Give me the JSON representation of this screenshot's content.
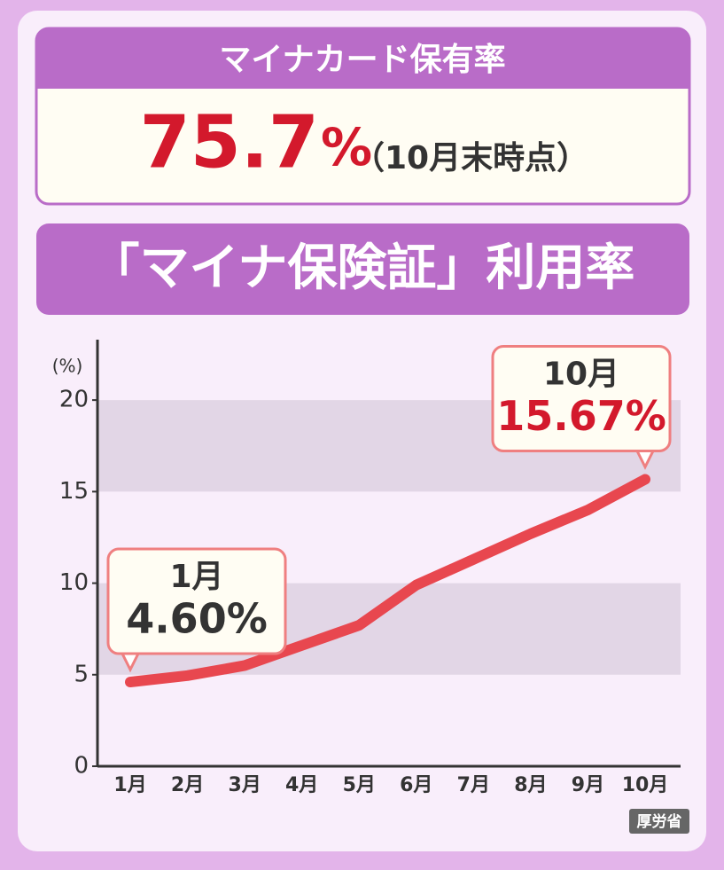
{
  "header": {
    "title": "マイナカード保有率",
    "value": "75.7",
    "unit": "%",
    "note": "（10月末時点）"
  },
  "chart_data": {
    "type": "line",
    "title": "「マイナ保険証」利用率",
    "y_label": "(%)",
    "categories": [
      "1月",
      "2月",
      "3月",
      "4月",
      "5月",
      "6月",
      "7月",
      "8月",
      "9月",
      "10月"
    ],
    "series": [
      {
        "name": "利用率",
        "color": "#e8474f",
        "values": [
          4.6,
          4.95,
          5.5,
          6.6,
          7.7,
          9.9,
          11.3,
          12.7,
          14.0,
          15.67
        ],
        "value_labels": [
          "4.60%",
          null,
          null,
          null,
          null,
          null,
          null,
          null,
          null,
          "15.67%"
        ]
      }
    ],
    "ylim": [
      0,
      23.3
    ],
    "yticks": [
      0,
      5,
      10,
      15,
      20
    ],
    "grid_bands": true,
    "source": "厚労省"
  }
}
